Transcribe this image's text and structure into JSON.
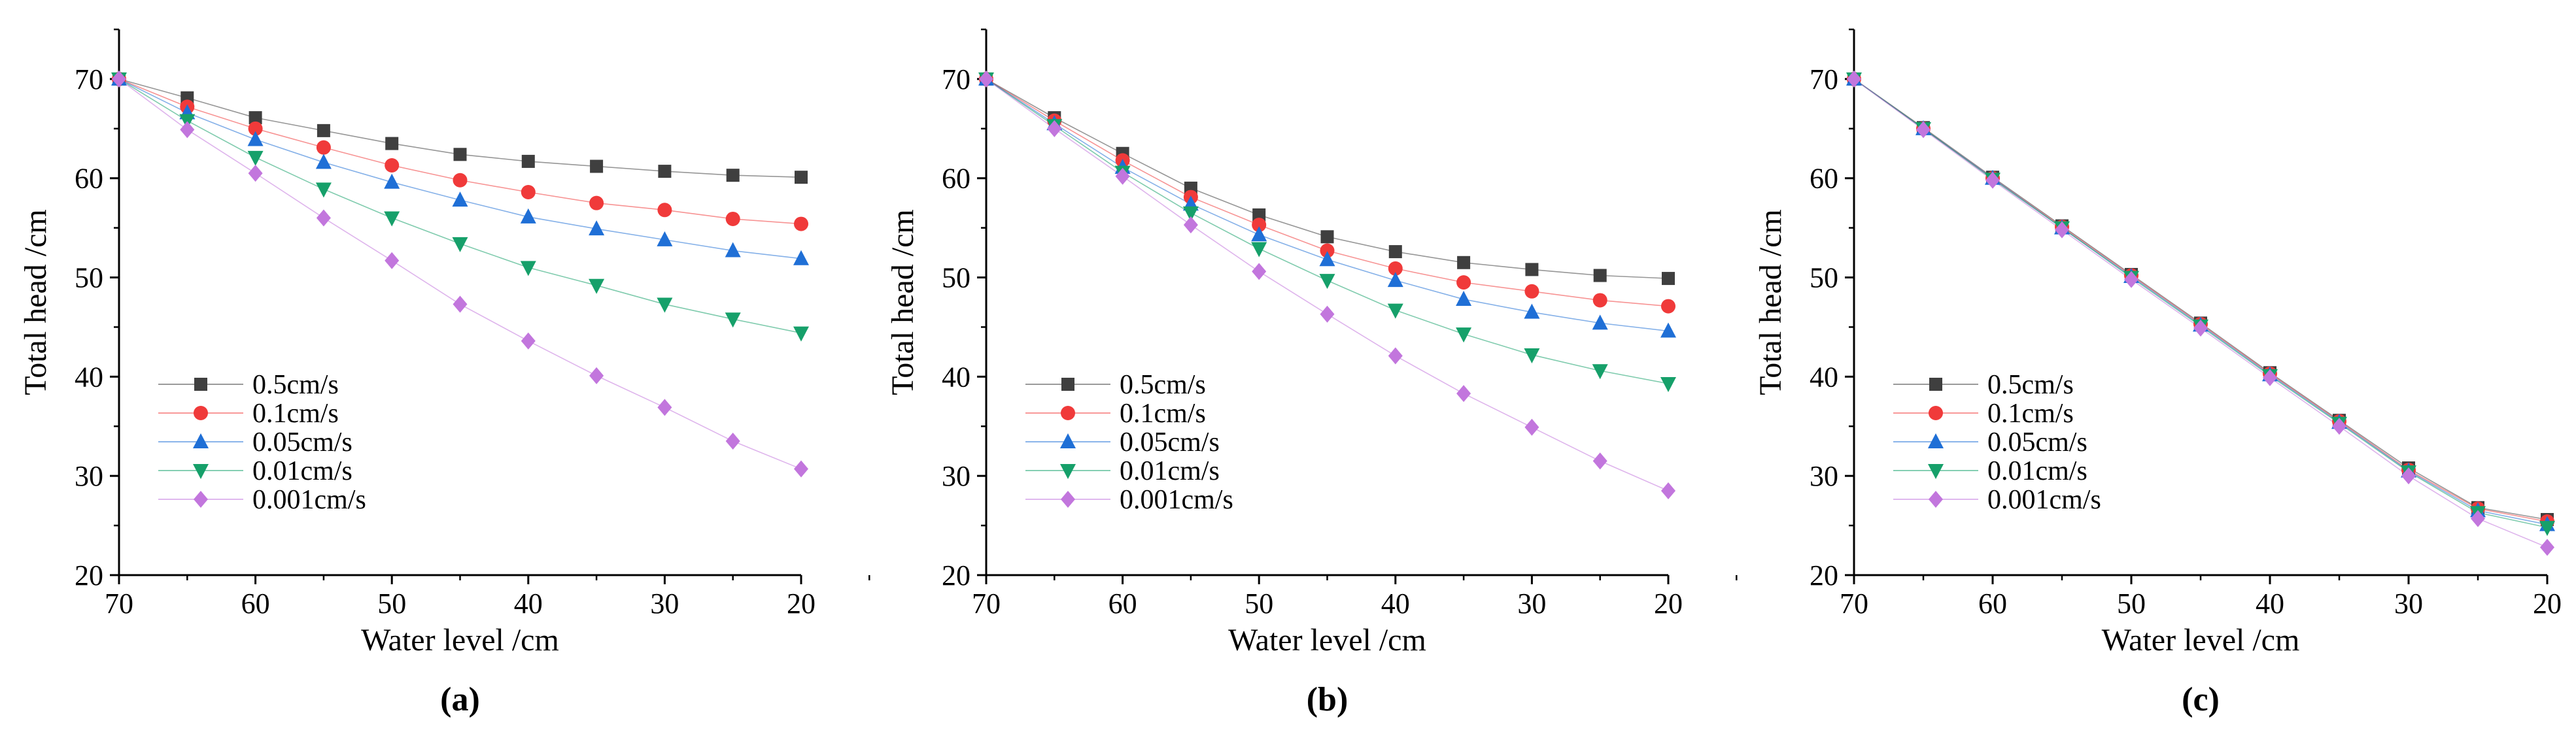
{
  "chart_data": [
    {
      "type": "line",
      "panel_label": "(a)",
      "xlabel": "Water level /cm",
      "ylabel": "Total head /cm",
      "xlim": [
        70,
        20
      ],
      "ylim": [
        20,
        75
      ],
      "x_ticks": [
        "70",
        "60",
        "50",
        "40",
        "30",
        "20"
      ],
      "y_ticks": [
        "20",
        "30",
        "40",
        "50",
        "60",
        "70"
      ],
      "legend_position": "bottom-left",
      "x": [
        70,
        65,
        60,
        55,
        50,
        45,
        40,
        35,
        30,
        25,
        20
      ],
      "series": [
        {
          "name": "0.5cm/s",
          "color": "#3f3f3f",
          "marker": "square",
          "values": [
            70,
            68.1,
            66.1,
            64.8,
            63.5,
            62.4,
            61.7,
            61.2,
            60.7,
            60.3,
            60.1
          ]
        },
        {
          "name": "0.1cm/s",
          "color": "#f03a3a",
          "marker": "circle",
          "values": [
            70,
            67.2,
            65.0,
            63.1,
            61.3,
            59.8,
            58.6,
            57.5,
            56.8,
            55.9,
            55.4
          ]
        },
        {
          "name": "0.05cm/s",
          "color": "#1f6fd6",
          "marker": "triangle-up",
          "values": [
            70,
            66.6,
            63.9,
            61.6,
            59.6,
            57.8,
            56.1,
            54.9,
            53.8,
            52.7,
            51.9
          ]
        },
        {
          "name": "0.01cm/s",
          "color": "#16a06a",
          "marker": "triangle-down",
          "values": [
            70,
            65.8,
            62.1,
            58.9,
            56.0,
            53.4,
            51.0,
            49.2,
            47.3,
            45.8,
            44.4
          ]
        },
        {
          "name": "0.001cm/s",
          "color": "#c276dd",
          "marker": "diamond",
          "values": [
            70,
            64.9,
            60.5,
            56.0,
            51.7,
            47.3,
            43.6,
            40.1,
            36.9,
            33.5,
            30.7
          ]
        }
      ]
    },
    {
      "type": "line",
      "panel_label": "(b)",
      "xlabel": "Water level /cm",
      "ylabel": "Total head /cm",
      "xlim": [
        70,
        20
      ],
      "ylim": [
        20,
        75
      ],
      "x_ticks": [
        "70",
        "60",
        "50",
        "40",
        "30",
        "20"
      ],
      "y_ticks": [
        "20",
        "30",
        "40",
        "50",
        "60",
        "70"
      ],
      "legend_position": "bottom-left",
      "x": [
        70,
        65,
        60,
        55,
        50,
        45,
        40,
        35,
        30,
        25,
        20
      ],
      "series": [
        {
          "name": "0.5cm/s",
          "color": "#3f3f3f",
          "marker": "square",
          "values": [
            70,
            66.1,
            62.5,
            59.0,
            56.3,
            54.1,
            52.6,
            51.5,
            50.8,
            50.2,
            49.9
          ]
        },
        {
          "name": "0.1cm/s",
          "color": "#f03a3a",
          "marker": "circle",
          "values": [
            70,
            65.8,
            61.8,
            58.1,
            55.3,
            52.7,
            50.9,
            49.5,
            48.6,
            47.7,
            47.1
          ]
        },
        {
          "name": "0.05cm/s",
          "color": "#1f6fd6",
          "marker": "triangle-up",
          "values": [
            70,
            65.5,
            61.1,
            57.4,
            54.3,
            51.8,
            49.7,
            47.8,
            46.5,
            45.4,
            44.6
          ]
        },
        {
          "name": "0.01cm/s",
          "color": "#16a06a",
          "marker": "triangle-down",
          "values": [
            70,
            65.3,
            60.6,
            56.5,
            52.9,
            49.7,
            46.7,
            44.3,
            42.2,
            40.6,
            39.3
          ]
        },
        {
          "name": "0.001cm/s",
          "color": "#c276dd",
          "marker": "diamond",
          "values": [
            70,
            65.0,
            60.2,
            55.3,
            50.6,
            46.3,
            42.1,
            38.3,
            34.9,
            31.5,
            28.5
          ]
        }
      ]
    },
    {
      "type": "line",
      "panel_label": "(c)",
      "xlabel": "Water level /cm",
      "ylabel": "Total head /cm",
      "xlim": [
        70,
        20
      ],
      "ylim": [
        20,
        75
      ],
      "x_ticks": [
        "70",
        "60",
        "50",
        "40",
        "30",
        "20"
      ],
      "y_ticks": [
        "20",
        "30",
        "40",
        "50",
        "60",
        "70"
      ],
      "legend_position": "bottom-left",
      "x": [
        70,
        65,
        60,
        55,
        50,
        45,
        40,
        35,
        30,
        25,
        20
      ],
      "series": [
        {
          "name": "0.5cm/s",
          "color": "#3f3f3f",
          "marker": "square",
          "values": [
            70,
            65.1,
            60.1,
            55.2,
            50.3,
            45.4,
            40.4,
            35.6,
            30.8,
            26.8,
            25.6
          ]
        },
        {
          "name": "0.1cm/s",
          "color": "#f03a3a",
          "marker": "circle",
          "values": [
            70,
            65.0,
            60.0,
            55.1,
            50.2,
            45.3,
            40.3,
            35.5,
            30.6,
            26.7,
            25.4
          ]
        },
        {
          "name": "0.05cm/s",
          "color": "#1f6fd6",
          "marker": "triangle-up",
          "values": [
            70,
            65.0,
            60.0,
            55.0,
            50.1,
            45.2,
            40.2,
            35.4,
            30.5,
            26.5,
            25.1
          ]
        },
        {
          "name": "0.01cm/s",
          "color": "#16a06a",
          "marker": "triangle-down",
          "values": [
            70,
            65.0,
            59.9,
            55.0,
            50.0,
            45.1,
            40.1,
            35.3,
            30.4,
            26.3,
            24.8
          ]
        },
        {
          "name": "0.001cm/s",
          "color": "#c276dd",
          "marker": "diamond",
          "values": [
            70,
            64.9,
            59.8,
            54.8,
            49.8,
            44.9,
            39.9,
            35.0,
            30.0,
            25.7,
            22.8
          ]
        }
      ]
    }
  ]
}
